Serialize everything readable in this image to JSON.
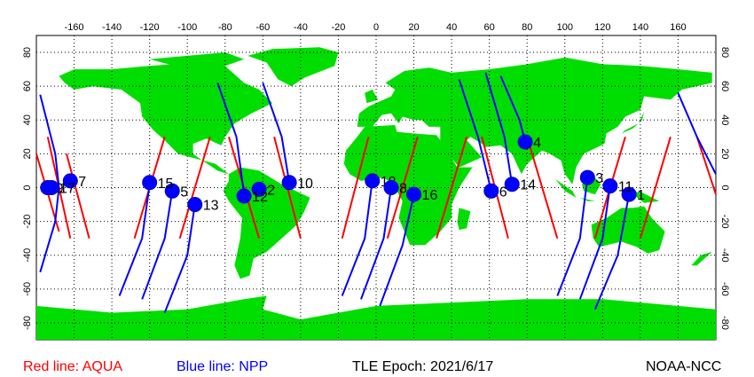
{
  "map": {
    "projection": "equirectangular",
    "lon_range": [
      -180,
      180
    ],
    "lat_range": [
      -90,
      90
    ],
    "x_ticks": [
      -160,
      -140,
      -120,
      -100,
      -80,
      -60,
      -40,
      -20,
      0,
      20,
      40,
      60,
      80,
      100,
      120,
      140,
      160
    ],
    "y_ticks": [
      -80,
      -60,
      -40,
      -20,
      0,
      20,
      40,
      60,
      80
    ],
    "grid": "dotted",
    "land_color": "#00dd00",
    "ocean_color": "#ffffff"
  },
  "satellites": {
    "AQUA": {
      "color": "#ff0000"
    },
    "NPP": {
      "color": "#0000ff"
    }
  },
  "passes": [
    {
      "label": "1",
      "lon": 134,
      "lat": -4
    },
    {
      "label": "2",
      "lon": -62,
      "lat": -1
    },
    {
      "label": "3",
      "lon": 112,
      "lat": 6
    },
    {
      "label": "4",
      "lon": 79,
      "lat": 27
    },
    {
      "label": "5",
      "lon": -108,
      "lat": -2
    },
    {
      "label": "6",
      "lon": 61,
      "lat": -2
    },
    {
      "label": "7",
      "lon": -162,
      "lat": 4
    },
    {
      "label": "9",
      "lon": -174,
      "lat": 0
    },
    {
      "label": "10",
      "lon": -46,
      "lat": 3
    },
    {
      "label": "11",
      "lon": 124,
      "lat": 1
    },
    {
      "label": "12",
      "lon": -70,
      "lat": -5
    },
    {
      "label": "13",
      "lon": -96,
      "lat": -10
    },
    {
      "label": "14",
      "lon": 72,
      "lat": 2
    },
    {
      "label": "15",
      "lon": -120,
      "lat": 3
    },
    {
      "label": "16",
      "lon": 20,
      "lat": -4
    },
    {
      "label": "17",
      "lon": -172,
      "lat": 0
    },
    {
      "label": "18",
      "lon": -2,
      "lat": 4
    },
    {
      "label": "8",
      "lon": 8,
      "lat": 0
    }
  ],
  "tracks": [
    {
      "satellite": "AQUA",
      "points": [
        [
          -180,
          20
        ],
        [
          -168,
          -26
        ]
      ]
    },
    {
      "satellite": "AQUA",
      "points": [
        [
          -174,
          30
        ],
        [
          -162,
          -30
        ]
      ]
    },
    {
      "satellite": "AQUA",
      "points": [
        [
          -164,
          20
        ],
        [
          -152,
          -30
        ]
      ]
    },
    {
      "satellite": "AQUA",
      "points": [
        [
          -112,
          30
        ],
        [
          -128,
          -30
        ]
      ]
    },
    {
      "satellite": "AQUA",
      "points": [
        [
          -88,
          30
        ],
        [
          -104,
          -30
        ]
      ]
    },
    {
      "satellite": "AQUA",
      "points": [
        [
          -78,
          30
        ],
        [
          -62,
          -30
        ]
      ]
    },
    {
      "satellite": "AQUA",
      "points": [
        [
          -54,
          30
        ],
        [
          -40,
          -30
        ]
      ]
    },
    {
      "satellite": "AQUA",
      "points": [
        [
          -4,
          30
        ],
        [
          -18,
          -30
        ]
      ]
    },
    {
      "satellite": "AQUA",
      "points": [
        [
          22,
          30
        ],
        [
          6,
          -30
        ]
      ]
    },
    {
      "satellite": "AQUA",
      "points": [
        [
          48,
          30
        ],
        [
          32,
          -30
        ]
      ]
    },
    {
      "satellite": "AQUA",
      "points": [
        [
          56,
          30
        ],
        [
          70,
          -30
        ]
      ]
    },
    {
      "satellite": "AQUA",
      "points": [
        [
          80,
          30
        ],
        [
          96,
          -30
        ]
      ]
    },
    {
      "satellite": "AQUA",
      "points": [
        [
          132,
          30
        ],
        [
          116,
          -30
        ]
      ]
    },
    {
      "satellite": "AQUA",
      "points": [
        [
          156,
          30
        ],
        [
          140,
          -30
        ]
      ]
    },
    {
      "satellite": "AQUA",
      "points": [
        [
          170,
          30
        ],
        [
          180,
          -4
        ]
      ]
    },
    {
      "satellite": "NPP",
      "points": [
        [
          -178,
          55
        ],
        [
          -170,
          20
        ],
        [
          -168,
          0
        ],
        [
          -170,
          -20
        ],
        [
          -178,
          -50
        ]
      ]
    },
    {
      "satellite": "NPP",
      "points": [
        [
          -120,
          2
        ],
        [
          -124,
          -30
        ],
        [
          -136,
          -64
        ]
      ]
    },
    {
      "satellite": "NPP",
      "points": [
        [
          -108,
          -2
        ],
        [
          -112,
          -30
        ],
        [
          -124,
          -66
        ]
      ]
    },
    {
      "satellite": "NPP",
      "points": [
        [
          -96,
          -10
        ],
        [
          -100,
          -40
        ],
        [
          -112,
          -74
        ]
      ]
    },
    {
      "satellite": "NPP",
      "points": [
        [
          -84,
          62
        ],
        [
          -74,
          30
        ],
        [
          -70,
          -4
        ]
      ]
    },
    {
      "satellite": "NPP",
      "points": [
        [
          -60,
          62
        ],
        [
          -50,
          30
        ],
        [
          -46,
          3
        ]
      ]
    },
    {
      "satellite": "NPP",
      "points": [
        [
          -2,
          4
        ],
        [
          -6,
          -30
        ],
        [
          -18,
          -64
        ]
      ]
    },
    {
      "satellite": "NPP",
      "points": [
        [
          8,
          0
        ],
        [
          4,
          -30
        ],
        [
          -8,
          -66
        ]
      ]
    },
    {
      "satellite": "NPP",
      "points": [
        [
          20,
          -4
        ],
        [
          14,
          -34
        ],
        [
          2,
          -70
        ]
      ]
    },
    {
      "satellite": "NPP",
      "points": [
        [
          44,
          64
        ],
        [
          54,
          30
        ],
        [
          61,
          -2
        ]
      ]
    },
    {
      "satellite": "NPP",
      "points": [
        [
          58,
          68
        ],
        [
          68,
          30
        ],
        [
          72,
          2
        ]
      ]
    },
    {
      "satellite": "NPP",
      "points": [
        [
          66,
          66
        ],
        [
          76,
          40
        ],
        [
          79,
          27
        ]
      ]
    },
    {
      "satellite": "NPP",
      "points": [
        [
          112,
          6
        ],
        [
          108,
          -30
        ],
        [
          96,
          -64
        ]
      ]
    },
    {
      "satellite": "NPP",
      "points": [
        [
          124,
          1
        ],
        [
          120,
          -30
        ],
        [
          108,
          -66
        ]
      ]
    },
    {
      "satellite": "NPP",
      "points": [
        [
          134,
          -4
        ],
        [
          128,
          -40
        ],
        [
          116,
          -72
        ]
      ]
    },
    {
      "satellite": "NPP",
      "points": [
        [
          160,
          56
        ],
        [
          170,
          30
        ],
        [
          180,
          8
        ]
      ]
    }
  ],
  "footer": {
    "legend_aqua": "Red line: AQUA",
    "legend_npp": "Blue line: NPP",
    "epoch": "TLE Epoch: 2021/6/17",
    "credit": "NOAA-NCC"
  }
}
